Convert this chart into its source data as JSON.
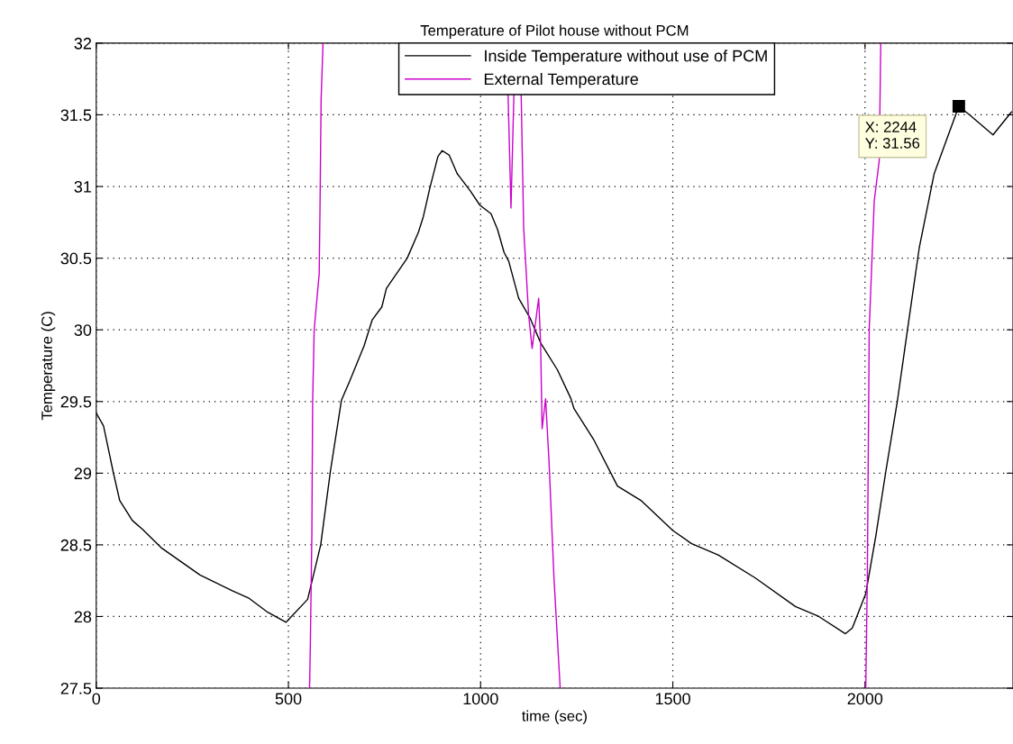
{
  "chart_data": {
    "type": "line",
    "title": "Temperature of Pilot house without PCM",
    "xlabel": "time (sec)",
    "ylabel": "Temperature (C)",
    "xlim": [
      0,
      2385
    ],
    "ylim": [
      27.5,
      32
    ],
    "xticks": [
      0,
      500,
      1000,
      1500,
      2000
    ],
    "yticks": [
      27.5,
      28,
      28.5,
      29,
      29.5,
      30,
      30.5,
      31,
      31.5,
      32
    ],
    "grid": true,
    "legend": "top",
    "line_style": "solid",
    "marker": "none",
    "annotations": [
      {
        "text": "X: 2244\nY: 31.56",
        "x": 2244,
        "y": 31.56
      }
    ],
    "series": [
      {
        "name": "Inside Temperature without use of PCM",
        "color": "#000000",
        "x": [
          0,
          19,
          44,
          61,
          94,
          120,
          169,
          270,
          354,
          396,
          446,
          494,
          550,
          584,
          609,
          638,
          659,
          697,
          718,
          743,
          755,
          809,
          838,
          851,
          868,
          889,
          900,
          918,
          939,
          973,
          998,
          1027,
          1044,
          1061,
          1073,
          1099,
          1129,
          1156,
          1200,
          1235,
          1243,
          1295,
          1356,
          1417,
          1500,
          1548,
          1618,
          1714,
          1819,
          1880,
          1949,
          1967,
          2002,
          2028,
          2054,
          2084,
          2111,
          2141,
          2180,
          2244,
          2272,
          2333,
          2381
        ],
        "values": [
          29.42,
          29.33,
          29.01,
          28.81,
          28.67,
          28.61,
          28.48,
          28.29,
          28.18,
          28.13,
          28.03,
          27.96,
          28.12,
          28.5,
          29.01,
          29.51,
          29.64,
          29.89,
          30.07,
          30.16,
          30.29,
          30.5,
          30.68,
          30.79,
          30.99,
          31.21,
          31.25,
          31.22,
          31.09,
          30.97,
          30.87,
          30.81,
          30.7,
          30.54,
          30.48,
          30.22,
          30.08,
          29.91,
          29.72,
          29.52,
          29.45,
          29.23,
          28.91,
          28.81,
          28.6,
          28.51,
          28.43,
          28.27,
          28.07,
          28.0,
          27.88,
          27.92,
          28.16,
          28.56,
          29.01,
          29.5,
          30.01,
          30.57,
          31.09,
          31.56,
          31.5,
          31.36,
          31.52
        ]
      },
      {
        "name": "External Temperature",
        "color": "#cc00cc",
        "x": [
          555,
          557,
          561,
          563,
          567,
          580,
          582,
          585,
          590,
          800,
          1068,
          1079,
          1090,
          1103,
          1112,
          1125,
          1134,
          1151,
          1156,
          1160,
          1169,
          1178,
          1191,
          1207,
          1600,
          2002,
          2006,
          2011,
          2024,
          2037,
          2041
        ],
        "values": [
          27.5,
          27.8,
          28.58,
          29.5,
          30.0,
          30.39,
          30.81,
          31.6,
          32,
          null,
          32,
          30.85,
          32,
          32,
          30.71,
          30.1,
          29.87,
          30.22,
          29.91,
          29.31,
          29.52,
          29.08,
          28.26,
          27.5,
          null,
          27.5,
          28.26,
          30.01,
          30.9,
          31.18,
          32
        ]
      }
    ]
  }
}
